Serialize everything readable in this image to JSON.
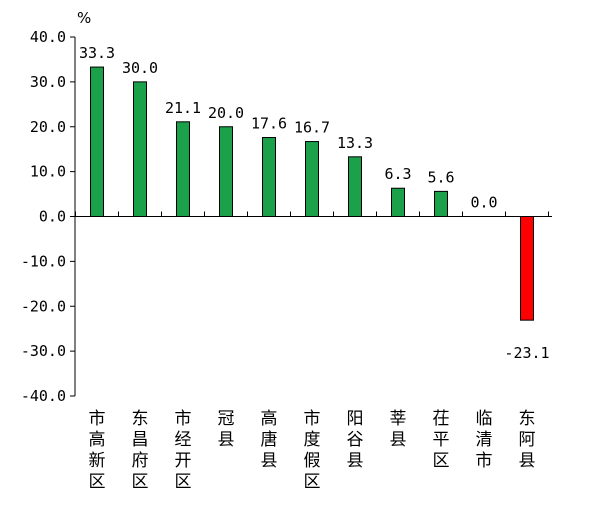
{
  "chart_data": {
    "type": "bar",
    "title": "",
    "xlabel": "",
    "ylabel": "%",
    "ylim": [
      -40,
      40
    ],
    "yticks": [
      40,
      30,
      20,
      10,
      0,
      -10,
      -20,
      -30,
      -40
    ],
    "ytick_labels": [
      "40.0",
      "30.0",
      "20.0",
      "10.0",
      "0.0",
      "-10.0",
      "-20.0",
      "-30.0",
      "-40.0"
    ],
    "grid": false,
    "legend": "none",
    "categories": [
      "市高新区",
      "东昌府区",
      "市经开区",
      "冠县",
      "高唐县",
      "市度假区",
      "阳谷县",
      "莘县",
      "茌平区",
      "临清市",
      "东阿县"
    ],
    "values": [
      33.3,
      30.0,
      21.1,
      20.0,
      17.6,
      16.7,
      13.3,
      6.3,
      5.6,
      0.0,
      -23.1
    ],
    "value_labels": [
      "33.3",
      "30.0",
      "21.1",
      "20.0",
      "17.6",
      "16.7",
      "13.3",
      "6.3",
      "5.6",
      "0.0",
      "-23.1"
    ],
    "colors": {
      "positive": "#1aa14a",
      "negative": "#ff0000",
      "stroke": "#000000"
    }
  }
}
